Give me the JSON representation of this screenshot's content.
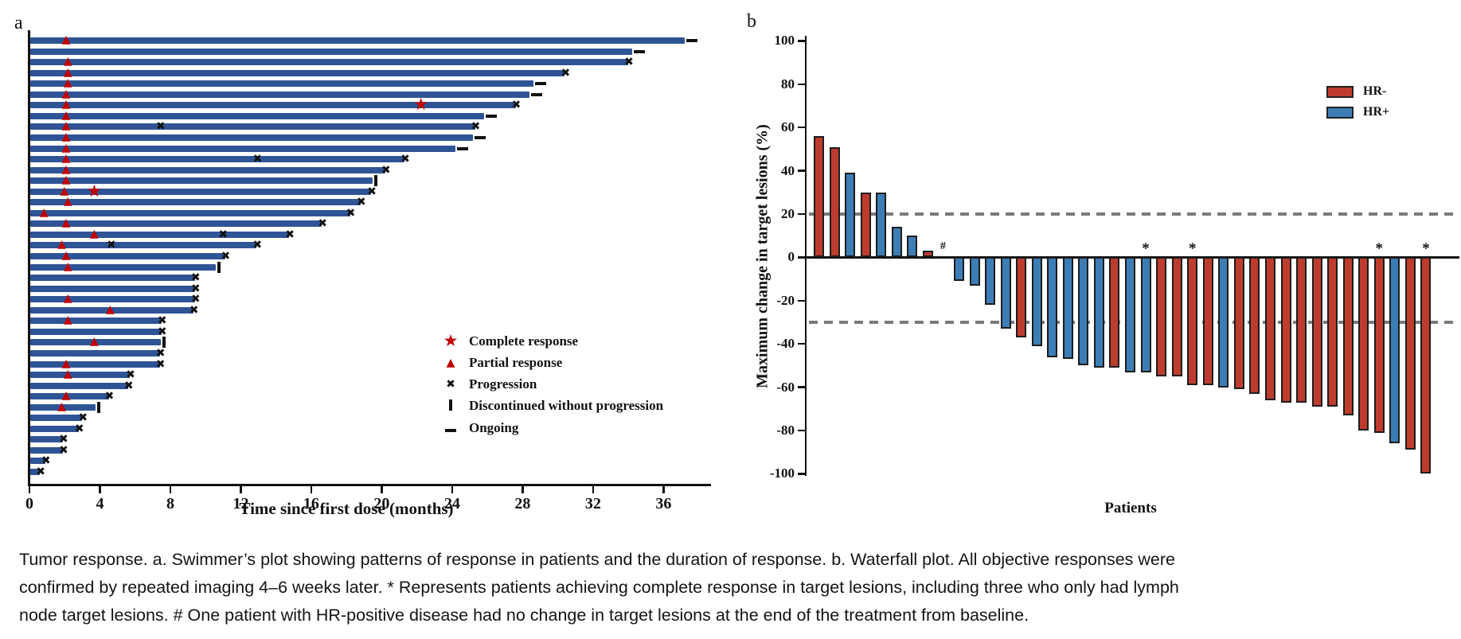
{
  "figure_title": "Tumor response",
  "colors": {
    "swimmer_bar": "#2f5496",
    "response_red": "#c00000",
    "event_black": "#111111",
    "hr_negative_red": "#be3c2d",
    "hr_positive_blue": "#3d7db5",
    "reference_dash_gray": "#7a7a7a"
  },
  "caption": {
    "lines": [
      "Tumor response. a. Swimmer’s plot showing patterns of response in patients and the duration of response. b. Waterfall plot. All objective responses were",
      "confirmed by repeated imaging 4–6 weeks later. * Represents patients achieving complete response in target lesions, including three who only had lymph",
      "node target lesions. # One patient with HR-positive disease had no change in target lesions at the end of the treatment from baseline."
    ]
  },
  "chart_data": [
    {
      "type": "swimmer",
      "panel_label": "a",
      "xlabel": "Time since first dose (months)",
      "xlim": [
        0,
        38.5
      ],
      "x_ticks": [
        0,
        4,
        8,
        12,
        16,
        20,
        24,
        28,
        32,
        36
      ],
      "grid": false,
      "legend_position": "inside-right-bottom",
      "legend": [
        {
          "symbol": "star",
          "label": "Complete response",
          "color": "#c00000"
        },
        {
          "symbol": "triangle",
          "label": "Partial response",
          "color": "#c00000"
        },
        {
          "symbol": "x",
          "label": "Progression",
          "color": "#111111"
        },
        {
          "symbol": "vbar",
          "label": "Discontinued without progression",
          "color": "#111111"
        },
        {
          "symbol": "dash",
          "label": "Ongoing",
          "color": "#111111"
        }
      ],
      "marker_types": {
        "t": "partial-response-triangle",
        "s": "complete-response-star",
        "x": "progression-x"
      },
      "end_types": {
        "x": "progression",
        "bar": "discontinued-without-progression",
        "dash": "ongoing",
        "none": "none"
      },
      "patients": [
        {
          "duration": 37.2,
          "end": "dash",
          "markers": [
            [
              2.2,
              "t"
            ]
          ]
        },
        {
          "duration": 34.2,
          "end": "dash",
          "markers": []
        },
        {
          "duration": 34.0,
          "end": "x",
          "markers": [
            [
              2.3,
              "t"
            ]
          ]
        },
        {
          "duration": 30.4,
          "end": "x",
          "markers": [
            [
              2.3,
              "t"
            ]
          ]
        },
        {
          "duration": 28.6,
          "end": "dash",
          "markers": [
            [
              2.3,
              "t"
            ]
          ]
        },
        {
          "duration": 28.4,
          "end": "dash",
          "markers": [
            [
              2.2,
              "t"
            ]
          ]
        },
        {
          "duration": 27.6,
          "end": "x",
          "markers": [
            [
              2.2,
              "t"
            ],
            [
              22.3,
              "s"
            ]
          ]
        },
        {
          "duration": 25.8,
          "end": "dash",
          "markers": [
            [
              2.2,
              "t"
            ]
          ]
        },
        {
          "duration": 25.3,
          "end": "x",
          "markers": [
            [
              2.2,
              "t"
            ],
            [
              7.5,
              "x"
            ]
          ]
        },
        {
          "duration": 25.2,
          "end": "dash",
          "markers": [
            [
              2.2,
              "t"
            ]
          ]
        },
        {
          "duration": 24.2,
          "end": "dash",
          "markers": [
            [
              2.2,
              "t"
            ]
          ]
        },
        {
          "duration": 21.3,
          "end": "x",
          "markers": [
            [
              2.2,
              "t"
            ],
            [
              13.0,
              "x"
            ]
          ]
        },
        {
          "duration": 20.2,
          "end": "x",
          "markers": [
            [
              2.2,
              "t"
            ]
          ]
        },
        {
          "duration": 19.5,
          "end": "bar",
          "markers": [
            [
              2.2,
              "t"
            ]
          ]
        },
        {
          "duration": 19.4,
          "end": "x",
          "markers": [
            [
              2.1,
              "t"
            ],
            [
              3.75,
              "s"
            ]
          ]
        },
        {
          "duration": 18.8,
          "end": "x",
          "markers": [
            [
              2.3,
              "t"
            ]
          ]
        },
        {
          "duration": 18.2,
          "end": "x",
          "markers": [
            [
              0.95,
              "t"
            ]
          ]
        },
        {
          "duration": 16.6,
          "end": "x",
          "markers": [
            [
              2.2,
              "t"
            ]
          ]
        },
        {
          "duration": 14.75,
          "end": "x",
          "markers": [
            [
              3.8,
              "t"
            ],
            [
              11.05,
              "x"
            ]
          ]
        },
        {
          "duration": 12.9,
          "end": "x",
          "markers": [
            [
              1.95,
              "t"
            ],
            [
              4.7,
              "x"
            ]
          ]
        },
        {
          "duration": 11.1,
          "end": "x",
          "markers": [
            [
              2.2,
              "t"
            ]
          ]
        },
        {
          "duration": 10.6,
          "end": "bar",
          "markers": [
            [
              2.3,
              "t"
            ]
          ]
        },
        {
          "duration": 9.4,
          "end": "x",
          "markers": []
        },
        {
          "duration": 9.4,
          "end": "x",
          "markers": []
        },
        {
          "duration": 9.4,
          "end": "x",
          "markers": [
            [
              2.3,
              "t"
            ]
          ]
        },
        {
          "duration": 9.3,
          "end": "x",
          "markers": [
            [
              4.7,
              "t"
            ]
          ]
        },
        {
          "duration": 7.5,
          "end": "x",
          "markers": [
            [
              2.3,
              "t"
            ]
          ]
        },
        {
          "duration": 7.5,
          "end": "x",
          "markers": []
        },
        {
          "duration": 7.45,
          "end": "bar",
          "markers": [
            [
              3.8,
              "t"
            ]
          ]
        },
        {
          "duration": 7.4,
          "end": "x",
          "markers": []
        },
        {
          "duration": 7.4,
          "end": "x",
          "markers": [
            [
              2.2,
              "t"
            ]
          ]
        },
        {
          "duration": 5.7,
          "end": "x",
          "markers": [
            [
              2.3,
              "t"
            ]
          ]
        },
        {
          "duration": 5.6,
          "end": "x",
          "markers": []
        },
        {
          "duration": 4.5,
          "end": "x",
          "markers": [
            [
              2.2,
              "t"
            ]
          ]
        },
        {
          "duration": 3.75,
          "end": "bar",
          "markers": [
            [
              1.95,
              "t"
            ]
          ]
        },
        {
          "duration": 3.0,
          "end": "x",
          "markers": []
        },
        {
          "duration": 2.8,
          "end": "x",
          "markers": []
        },
        {
          "duration": 1.9,
          "end": "x",
          "markers": []
        },
        {
          "duration": 1.9,
          "end": "x",
          "markers": []
        },
        {
          "duration": 0.9,
          "end": "x",
          "markers": []
        },
        {
          "duration": 0.6,
          "end": "x",
          "markers": []
        }
      ]
    },
    {
      "type": "bar",
      "subtype": "waterfall",
      "panel_label": "b",
      "ylabel": "Maximum change in target lesions (%)",
      "xlabel": "Patients",
      "ylim": [
        -100,
        100
      ],
      "y_ticks": [
        100,
        80,
        60,
        40,
        20,
        0,
        -20,
        -40,
        -60,
        -80,
        -100
      ],
      "reference_lines": [
        20,
        -30
      ],
      "grid": false,
      "legend_position": "top-right",
      "legend": [
        {
          "label": "HR-",
          "color": "#be3c2d"
        },
        {
          "label": "HR+",
          "color": "#3d7db5"
        }
      ],
      "flag_meanings": {
        "*": "complete response in target lesions",
        "#": "no change in target lesions"
      },
      "bars": [
        {
          "value": 56,
          "group": "HR-"
        },
        {
          "value": 51,
          "group": "HR-"
        },
        {
          "value": 39,
          "group": "HR+"
        },
        {
          "value": 30,
          "group": "HR-"
        },
        {
          "value": 30,
          "group": "HR+"
        },
        {
          "value": 14,
          "group": "HR+"
        },
        {
          "value": 10,
          "group": "HR+"
        },
        {
          "value": 3,
          "group": "HR-"
        },
        {
          "value": 0,
          "group": "HR+",
          "flag": "#"
        },
        {
          "value": -11,
          "group": "HR+"
        },
        {
          "value": -13,
          "group": "HR+"
        },
        {
          "value": -22,
          "group": "HR+"
        },
        {
          "value": -33,
          "group": "HR+"
        },
        {
          "value": -37,
          "group": "HR-"
        },
        {
          "value": -41,
          "group": "HR+"
        },
        {
          "value": -46,
          "group": "HR+"
        },
        {
          "value": -47,
          "group": "HR+"
        },
        {
          "value": -50,
          "group": "HR+"
        },
        {
          "value": -51,
          "group": "HR+"
        },
        {
          "value": -51,
          "group": "HR-"
        },
        {
          "value": -53,
          "group": "HR+"
        },
        {
          "value": -53,
          "group": "HR+",
          "flag": "*"
        },
        {
          "value": -55,
          "group": "HR-"
        },
        {
          "value": -55,
          "group": "HR-"
        },
        {
          "value": -59,
          "group": "HR-",
          "flag": "*"
        },
        {
          "value": -59,
          "group": "HR-"
        },
        {
          "value": -60,
          "group": "HR+"
        },
        {
          "value": -61,
          "group": "HR-"
        },
        {
          "value": -63,
          "group": "HR-"
        },
        {
          "value": -66,
          "group": "HR-"
        },
        {
          "value": -67,
          "group": "HR-"
        },
        {
          "value": -67,
          "group": "HR-"
        },
        {
          "value": -69,
          "group": "HR-"
        },
        {
          "value": -69,
          "group": "HR-"
        },
        {
          "value": -73,
          "group": "HR-"
        },
        {
          "value": -80,
          "group": "HR-"
        },
        {
          "value": -81,
          "group": "HR-",
          "flag": "*"
        },
        {
          "value": -86,
          "group": "HR+"
        },
        {
          "value": -89,
          "group": "HR-"
        },
        {
          "value": -100,
          "group": "HR-",
          "flag": "*"
        }
      ]
    }
  ]
}
